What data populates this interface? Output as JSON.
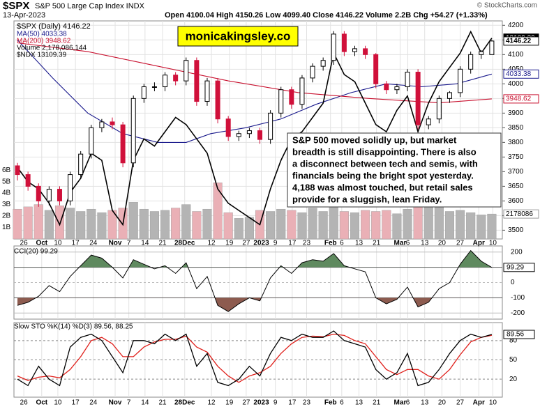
{
  "chart_data": [
    {
      "type": "candlestick",
      "title": "$SPX",
      "subtitle": "S&P 500 Large Cap Index INDX",
      "date": "13-Apr-2023",
      "quote": "Open 4100.04  High 4150.26  Low 4099.40  Close 4146.22  Volume 2.2B  Chg +54.27 (+1.33%)",
      "source": "© StockCharts.com",
      "watermark": "monicakingsley.co",
      "annotation": [
        "S&P 500 moved solidly up, but market",
        "breadth is still disappointing. There is also",
        "a disconnect between tech and semis, with",
        "financials being the bright spot yesterday.",
        "4,188 was almost touched, but retail sales",
        "provide for a sluggish, lean Friday."
      ],
      "name": "$SPX (Daily) 4146.22",
      "last_label": "4146.22",
      "up_color": "#000000",
      "down_color": "#d0103a",
      "x": [
        0,
        3,
        6,
        9,
        12,
        15,
        18,
        21,
        24,
        27,
        30,
        33,
        36,
        39,
        42,
        45,
        48,
        51,
        54,
        57,
        60,
        63,
        66,
        69,
        72,
        75,
        78,
        81,
        84,
        87,
        90,
        93,
        96,
        99,
        102,
        105,
        108,
        111,
        114,
        117,
        120,
        123,
        126,
        129,
        132,
        135
      ],
      "open": [
        3720,
        3690,
        3650,
        3600,
        3640,
        3600,
        3690,
        3760,
        3850,
        3870,
        3860,
        3730,
        3950,
        3990,
        3990,
        4030,
        4010,
        4080,
        3940,
        4010,
        3880,
        3820,
        3830,
        3840,
        3810,
        3900,
        3980,
        3930,
        4020,
        4060,
        4080,
        4170,
        4110,
        4120,
        4100,
        4000,
        3980,
        3990,
        4040,
        3860,
        3880,
        3950,
        3970,
        4050,
        4100,
        4100.04
      ],
      "high": [
        3730,
        3700,
        3660,
        3650,
        3650,
        3700,
        3770,
        3860,
        3880,
        3885,
        3870,
        3960,
        4000,
        4005,
        4040,
        4040,
        4090,
        4090,
        4020,
        4020,
        3890,
        3840,
        3850,
        3850,
        3910,
        3990,
        3990,
        4030,
        4070,
        4090,
        4180,
        4180,
        4130,
        4130,
        4105,
        4010,
        4000,
        4050,
        4050,
        3890,
        3960,
        3975,
        4060,
        4110,
        4115,
        4150.26
      ],
      "low": [
        3670,
        3635,
        3580,
        3585,
        3585,
        3585,
        3675,
        3745,
        3835,
        3845,
        3715,
        3715,
        3935,
        3975,
        3975,
        3995,
        3995,
        3925,
        3925,
        3865,
        3805,
        3805,
        3815,
        3795,
        3795,
        3885,
        3915,
        3915,
        4005,
        4045,
        4065,
        4095,
        4095,
        4085,
        3985,
        3965,
        3965,
        3975,
        3845,
        3845,
        3865,
        3935,
        3955,
        4035,
        4085,
        4099.4
      ],
      "close": [
        3690,
        3650,
        3600,
        3640,
        3600,
        3690,
        3760,
        3850,
        3870,
        3860,
        3730,
        3950,
        3990,
        3990,
        4030,
        4010,
        4080,
        3940,
        4010,
        3880,
        3820,
        3830,
        3840,
        3810,
        3900,
        3980,
        3930,
        4020,
        4060,
        4080,
        4170,
        4110,
        4120,
        4100,
        4000,
        3980,
        3990,
        4040,
        3860,
        3880,
        3950,
        3970,
        4050,
        4100,
        4110,
        4146.22
      ],
      "xlim": [
        -1,
        138
      ],
      "xticks": [
        {
          "value": 1.8,
          "label": "26"
        },
        {
          "value": 6.9,
          "label": "Oct"
        },
        {
          "value": 11.5,
          "label": "10"
        },
        {
          "value": 16.5,
          "label": "17"
        },
        {
          "value": 21.6,
          "label": "24"
        },
        {
          "value": 27.8,
          "label": "Nov"
        },
        {
          "value": 31.7,
          "label": "7"
        },
        {
          "value": 36.3,
          "label": "14"
        },
        {
          "value": 41.3,
          "label": "21"
        },
        {
          "value": 47.6,
          "label": "28Dec"
        },
        {
          "value": 55.2,
          "label": "12"
        },
        {
          "value": 60.3,
          "label": "19"
        },
        {
          "value": 65.1,
          "label": "27"
        },
        {
          "value": 69.4,
          "label": "2023"
        },
        {
          "value": 73.4,
          "label": "9"
        },
        {
          "value": 78.2,
          "label": "17"
        },
        {
          "value": 82.3,
          "label": "23"
        },
        {
          "value": 89.1,
          "label": "Feb"
        },
        {
          "value": 92.3,
          "label": "6"
        },
        {
          "value": 97.2,
          "label": "13"
        },
        {
          "value": 102.2,
          "label": "21"
        },
        {
          "value": 108.9,
          "label": "Mar"
        },
        {
          "value": 111.1,
          "label": "6"
        },
        {
          "value": 115.9,
          "label": "13"
        },
        {
          "value": 120.8,
          "label": "20"
        },
        {
          "value": 126.0,
          "label": "27"
        },
        {
          "value": 131.3,
          "label": "Apr"
        },
        {
          "value": 135.3,
          "label": "10"
        }
      ],
      "ylim": [
        3470,
        4215
      ],
      "yticks": [
        3500,
        3550,
        3600,
        3650,
        3700,
        3750,
        3800,
        3850,
        3900,
        3950,
        4000,
        4050,
        4100,
        4150,
        4200
      ],
      "grid": true,
      "series": [
        {
          "name": "MA(50) 4033.38",
          "color": "#1a1a8c",
          "last_label": "4033.38",
          "x": [
            0,
            10,
            20,
            30,
            40,
            48,
            55,
            65,
            75,
            85,
            95,
            105,
            115,
            125,
            135
          ],
          "values": [
            4150,
            4020,
            3900,
            3830,
            3800,
            3800,
            3830,
            3850,
            3880,
            3930,
            3970,
            4000,
            3990,
            4000,
            4033.38
          ]
        },
        {
          "name": "MA(200) 3948.62",
          "color": "#c8102e",
          "last_label": "3948.62",
          "x": [
            0,
            20,
            40,
            60,
            80,
            100,
            120,
            135
          ],
          "values": [
            4140,
            4110,
            4060,
            4010,
            3970,
            3950,
            3935,
            3948.62
          ]
        },
        {
          "name": "$NDX 13109.39",
          "color": "#000000",
          "last_label": "13109.39",
          "axis": "y3",
          "values": [
            11300,
            11100,
            11000,
            10800,
            10500,
            10950,
            11150,
            11500,
            11400,
            10700,
            10500,
            11400,
            11700,
            11600,
            11800,
            12000,
            11900,
            11700,
            11500,
            11000,
            10800,
            10700,
            10600,
            10500,
            11000,
            11400,
            11700,
            11800,
            12000,
            12200,
            12900,
            12600,
            12500,
            12200,
            11900,
            11800,
            12100,
            12300,
            11800,
            12200,
            12500,
            12700,
            12900,
            13200,
            12900,
            13109.39
          ]
        }
      ],
      "y3lim": [
        10300,
        13350
      ],
      "volume": {
        "name": "Volume 2,178,086,144",
        "last_label": "2178086",
        "up_color": "#b4b4b4",
        "down_color": "#eab0b6",
        "values": [
          2.6,
          2.8,
          3.0,
          2.5,
          2.9,
          2.7,
          2.4,
          2.6,
          2.3,
          2.5,
          2.7,
          3.2,
          2.6,
          2.4,
          2.5,
          2.7,
          3.0,
          2.4,
          2.6,
          4.9,
          2.3,
          1.8,
          1.9,
          2.5,
          2.4,
          2.6,
          2.5,
          2.3,
          2.7,
          2.4,
          2.9,
          2.4,
          2.3,
          2.5,
          2.4,
          2.5,
          2.2,
          2.6,
          3.1,
          3.4,
          3.0,
          2.4,
          2.5,
          2.3,
          2.1,
          2.178086144
        ],
        "ylim": [
          0,
          19
        ],
        "yticks": [
          {
            "value": 1,
            "label": "1B"
          },
          {
            "value": 2,
            "label": "2B"
          },
          {
            "value": 3,
            "label": "3B"
          },
          {
            "value": 4,
            "label": "4B"
          },
          {
            "value": 5,
            "label": "5B"
          },
          {
            "value": 6,
            "label": "6B"
          }
        ]
      }
    },
    {
      "type": "line",
      "title": "CCI(20) 99.29",
      "color": "#000000",
      "last_label": "99.29",
      "overbought_color": "#5f8a5f",
      "oversold_color": "#8d5b4f",
      "values": [
        -150,
        -130,
        -90,
        -20,
        -60,
        40,
        110,
        180,
        160,
        100,
        30,
        150,
        120,
        90,
        110,
        60,
        130,
        -40,
        40,
        -150,
        -190,
        -140,
        -100,
        -120,
        30,
        110,
        60,
        130,
        150,
        140,
        190,
        110,
        90,
        70,
        -100,
        -140,
        -110,
        -30,
        -160,
        -130,
        -40,
        0,
        120,
        210,
        140,
        99.29
      ],
      "ylim": [
        -240,
        240
      ],
      "yticks": [
        -200,
        -100,
        0,
        100,
        200
      ]
    },
    {
      "type": "line",
      "title": "Slow STO %K(14) %D(3) 89.56, 88.25",
      "series": [
        {
          "color": "#000000",
          "last_label": "89.56",
          "values": [
            20,
            10,
            40,
            20,
            10,
            70,
            85,
            90,
            80,
            55,
            30,
            80,
            80,
            75,
            90,
            80,
            90,
            40,
            60,
            15,
            10,
            20,
            40,
            25,
            60,
            85,
            80,
            90,
            85,
            85,
            95,
            80,
            75,
            70,
            35,
            20,
            30,
            60,
            10,
            15,
            35,
            60,
            80,
            90,
            85,
            89.56
          ]
        },
        {
          "color": "#e0201b",
          "values": [
            25,
            18,
            23,
            25,
            22,
            35,
            55,
            80,
            85,
            75,
            55,
            55,
            70,
            78,
            82,
            82,
            87,
            70,
            62,
            40,
            25,
            15,
            25,
            30,
            40,
            60,
            75,
            85,
            87,
            86,
            90,
            88,
            80,
            75,
            55,
            35,
            27,
            35,
            35,
            25,
            20,
            35,
            58,
            78,
            85,
            88.25
          ]
        }
      ],
      "ylim": [
        -8,
        108
      ],
      "yticks": [
        20,
        50,
        80
      ]
    }
  ]
}
